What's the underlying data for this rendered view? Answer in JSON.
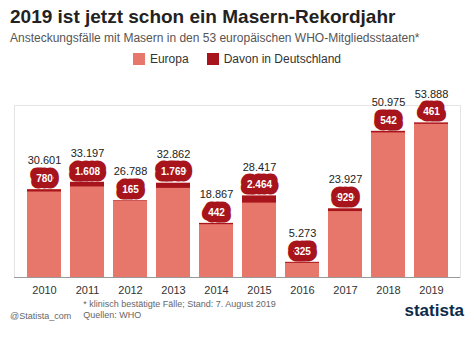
{
  "chart_data": {
    "type": "bar",
    "title": "2019 ist jetzt schon ein Masern-Rekordjahr",
    "subtitle": "Ansteckungsfälle mit Masern in den 53 europäischen WHO-Mitgliedsstaaten*",
    "categories": [
      "2010",
      "2011",
      "2012",
      "2013",
      "2014",
      "2015",
      "2016",
      "2017",
      "2018",
      "2019"
    ],
    "series": [
      {
        "name": "Europa",
        "color": "#e8776b",
        "values": [
          30601,
          33197,
          26788,
          32862,
          18867,
          28417,
          5273,
          23927,
          50975,
          53888
        ],
        "value_labels": [
          "30.601",
          "33.197",
          "26.788",
          "32.862",
          "18.867",
          "28.417",
          "5.273",
          "23.927",
          "50.975",
          "53.888"
        ]
      },
      {
        "name": "Davon in Deutschland",
        "color": "#a8141b",
        "values": [
          780,
          1608,
          165,
          1769,
          442,
          2464,
          325,
          929,
          542,
          461
        ],
        "value_labels": [
          "780",
          "1.608",
          "165",
          "1.769",
          "442",
          "2.464",
          "325",
          "929",
          "542",
          "461"
        ]
      }
    ],
    "ylim": [
      0,
      60000
    ],
    "yticks": [],
    "grid": false,
    "legend": "top",
    "data_labels": true,
    "tick_labels": "x",
    "credit": "@Statista_com",
    "footnote": "* klinisch bestätigte Fälle; Stand: 7. August 2019",
    "source": "Quellen: WHO",
    "logo_text": "statista"
  }
}
